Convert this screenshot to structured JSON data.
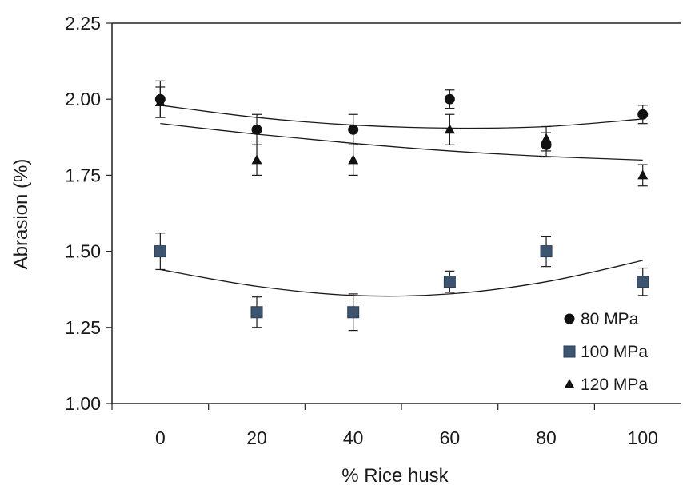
{
  "chart_data": {
    "type": "scatter",
    "title": "",
    "xlabel": "% Rice husk",
    "ylabel": "Abrasion (%)",
    "xlim": [
      -10,
      108
    ],
    "ylim": [
      1.0,
      2.25
    ],
    "xticks": [
      0,
      20,
      40,
      60,
      80,
      100
    ],
    "xtick_labels": [
      "0",
      "20",
      "40",
      "60",
      "80",
      "100"
    ],
    "yticks": [
      1.0,
      1.25,
      1.5,
      1.75,
      2.0,
      2.25
    ],
    "ytick_labels": [
      "1.00",
      "1.25",
      "1.50",
      "1.75",
      "2.00",
      "2.25"
    ],
    "grid": false,
    "legend_position": "bottom-right",
    "series": [
      {
        "name": "80 MPa",
        "marker": "circle",
        "color": "#111111",
        "x": [
          0,
          20,
          40,
          60,
          80,
          100
        ],
        "y": [
          2.0,
          1.9,
          1.9,
          2.0,
          1.85,
          1.95
        ],
        "error": [
          0.06,
          0.05,
          0.05,
          0.03,
          0.04,
          0.03
        ],
        "trend": [
          1.98,
          1.94,
          1.915,
          1.905,
          1.91,
          1.935
        ]
      },
      {
        "name": "100 MPa",
        "marker": "square",
        "color": "#3e5571",
        "x": [
          0,
          20,
          40,
          60,
          80,
          100
        ],
        "y": [
          1.5,
          1.3,
          1.3,
          1.4,
          1.5,
          1.4
        ],
        "error": [
          0.06,
          0.05,
          0.06,
          0.035,
          0.05,
          0.045
        ],
        "trend": [
          1.44,
          1.385,
          1.355,
          1.36,
          1.4,
          1.47
        ]
      },
      {
        "name": "120 MPa",
        "marker": "triangle",
        "color": "#111111",
        "x": [
          0,
          20,
          40,
          60,
          80,
          100
        ],
        "y": [
          1.99,
          1.8,
          1.8,
          1.9,
          1.87,
          1.75
        ],
        "error": [
          0.05,
          0.05,
          0.05,
          0.05,
          0.04,
          0.035
        ],
        "trend": [
          1.92,
          1.885,
          1.855,
          1.83,
          1.812,
          1.8
        ]
      }
    ]
  }
}
